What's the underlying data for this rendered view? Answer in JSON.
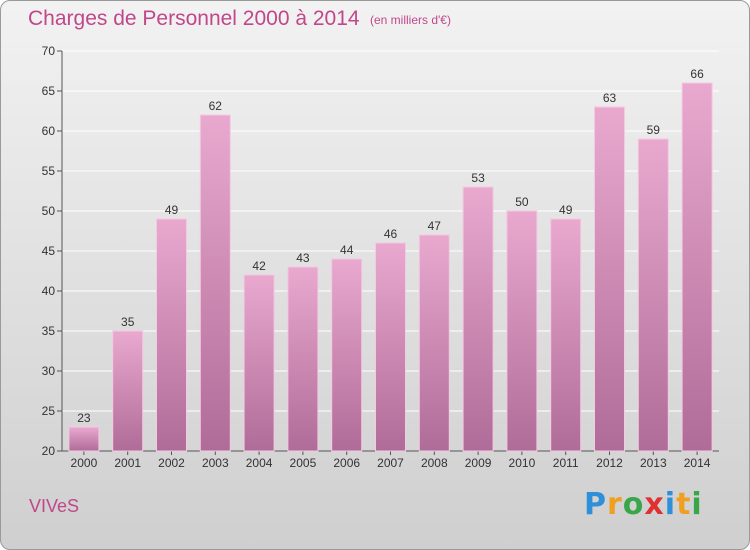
{
  "header": {
    "title": "Charges de Personnel 2000 à 2014",
    "subtitle": "(en milliers d'€)"
  },
  "commune": "VIVeS",
  "logo": {
    "text": "Proxiti",
    "letters": [
      {
        "ch": "P",
        "color": "#2f8fd8"
      },
      {
        "ch": "r",
        "color": "#f0a020"
      },
      {
        "ch": "o",
        "color": "#3aa64a"
      },
      {
        "ch": "x",
        "color": "#e03030"
      },
      {
        "ch": "i",
        "color": "#2f8fd8"
      },
      {
        "ch": "t",
        "color": "#f0a020"
      },
      {
        "ch": "i",
        "color": "#3aa64a"
      }
    ]
  },
  "colors": {
    "bar_top": "#e9a9cf",
    "bar_bottom": "#b06c98",
    "accent": "#c0478a"
  },
  "chart_data": {
    "type": "bar",
    "categories": [
      "2000",
      "2001",
      "2002",
      "2003",
      "2004",
      "2005",
      "2006",
      "2007",
      "2008",
      "2009",
      "2010",
      "2011",
      "2012",
      "2013",
      "2014"
    ],
    "values": [
      23,
      35,
      49,
      62,
      42,
      43,
      44,
      46,
      47,
      53,
      50,
      49,
      63,
      59,
      66
    ],
    "ylim": [
      20,
      70
    ],
    "yticks": [
      20,
      25,
      30,
      35,
      40,
      45,
      50,
      55,
      60,
      65,
      70
    ],
    "grid": "horizontal",
    "data_labels": true
  }
}
